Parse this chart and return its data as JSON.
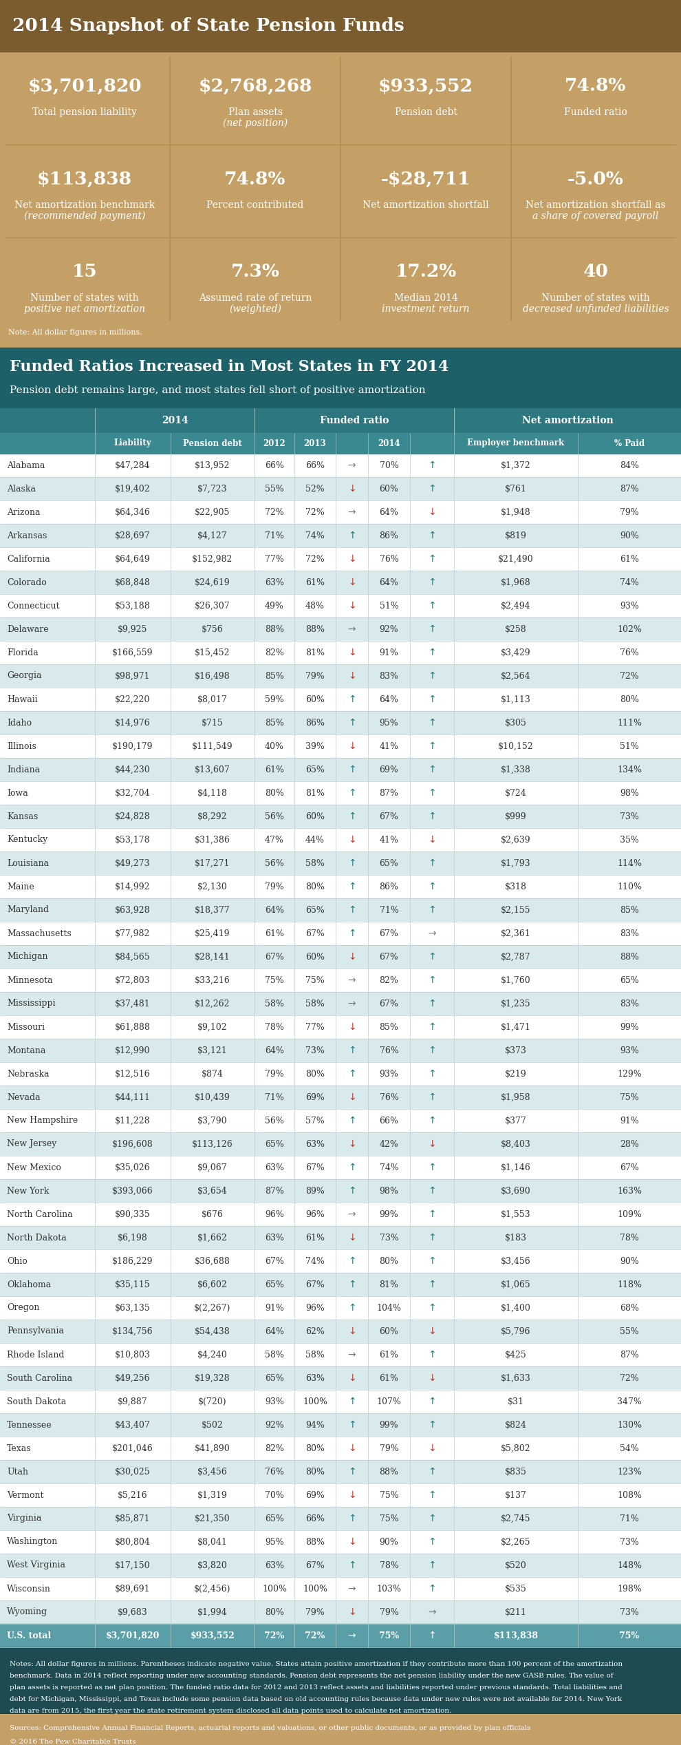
{
  "title_top": "2014 Snapshot of State Pension Funds",
  "top_dark_color": "#7a5c2e",
  "stats_bg_color": "#c4a067",
  "header_teal": "#1e6068",
  "col_header1_color": "#2d7880",
  "col_header2_color": "#3a8890",
  "row_white": "#ffffff",
  "row_light": "#d8eaec",
  "row_total_bg": "#5a9ea8",
  "notes_bg": "#1e4a52",
  "stats": [
    {
      "value": "$3,701,820",
      "label": "Total pension liability",
      "label2": ""
    },
    {
      "value": "$2,768,268",
      "label": "Plan assets",
      "label2": "(net position)"
    },
    {
      "value": "$933,552",
      "label": "Pension debt",
      "label2": ""
    },
    {
      "value": "74.8%",
      "label": "Funded ratio",
      "label2": ""
    }
  ],
  "stats2": [
    {
      "value": "$113,838",
      "label": "Net amortization benchmark",
      "label2": "(recommended payment)"
    },
    {
      "value": "74.8%",
      "label": "Percent contributed",
      "label2": ""
    },
    {
      "value": "-$28,711",
      "label": "Net amortization shortfall",
      "label2": ""
    },
    {
      "value": "-5.0%",
      "label": "Net amortization shortfall as",
      "label2": "a share of covered payroll"
    }
  ],
  "stats3": [
    {
      "value": "15",
      "label": "Number of states with",
      "label2": "positive net amortization"
    },
    {
      "value": "7.3%",
      "label": "Assumed rate of return",
      "label2": "(weighted)"
    },
    {
      "value": "17.2%",
      "label": "Median 2014",
      "label2": "investment return"
    },
    {
      "value": "40",
      "label": "Number of states with",
      "label2": "decreased unfunded liabilities"
    }
  ],
  "table_title": "Funded Ratios Increased in Most States in FY 2014",
  "table_subtitle": "Pension debt remains large, and most states fell short of positive amortization",
  "states": [
    [
      "Alabama",
      "$47,284",
      "$13,952",
      "66%",
      "66%",
      "→",
      "70%",
      "↑",
      "$1,372",
      "84%"
    ],
    [
      "Alaska",
      "$19,402",
      "$7,723",
      "55%",
      "52%",
      "↓",
      "60%",
      "↑",
      "$761",
      "87%"
    ],
    [
      "Arizona",
      "$64,346",
      "$22,905",
      "72%",
      "72%",
      "→",
      "64%",
      "↓",
      "$1,948",
      "79%"
    ],
    [
      "Arkansas",
      "$28,697",
      "$4,127",
      "71%",
      "74%",
      "↑",
      "86%",
      "↑",
      "$819",
      "90%"
    ],
    [
      "California",
      "$64,649",
      "$152,982",
      "77%",
      "72%",
      "↓",
      "76%",
      "↑",
      "$21,490",
      "61%"
    ],
    [
      "Colorado",
      "$68,848",
      "$24,619",
      "63%",
      "61%",
      "↓",
      "64%",
      "↑",
      "$1,968",
      "74%"
    ],
    [
      "Connecticut",
      "$53,188",
      "$26,307",
      "49%",
      "48%",
      "↓",
      "51%",
      "↑",
      "$2,494",
      "93%"
    ],
    [
      "Delaware",
      "$9,925",
      "$756",
      "88%",
      "88%",
      "→",
      "92%",
      "↑",
      "$258",
      "102%"
    ],
    [
      "Florida",
      "$166,559",
      "$15,452",
      "82%",
      "81%",
      "↓",
      "91%",
      "↑",
      "$3,429",
      "76%"
    ],
    [
      "Georgia",
      "$98,971",
      "$16,498",
      "85%",
      "79%",
      "↓",
      "83%",
      "↑",
      "$2,564",
      "72%"
    ],
    [
      "Hawaii",
      "$22,220",
      "$8,017",
      "59%",
      "60%",
      "↑",
      "64%",
      "↑",
      "$1,113",
      "80%"
    ],
    [
      "Idaho",
      "$14,976",
      "$715",
      "85%",
      "86%",
      "↑",
      "95%",
      "↑",
      "$305",
      "111%"
    ],
    [
      "Illinois",
      "$190,179",
      "$111,549",
      "40%",
      "39%",
      "↓",
      "41%",
      "↑",
      "$10,152",
      "51%"
    ],
    [
      "Indiana",
      "$44,230",
      "$13,607",
      "61%",
      "65%",
      "↑",
      "69%",
      "↑",
      "$1,338",
      "134%"
    ],
    [
      "Iowa",
      "$32,704",
      "$4,118",
      "80%",
      "81%",
      "↑",
      "87%",
      "↑",
      "$724",
      "98%"
    ],
    [
      "Kansas",
      "$24,828",
      "$8,292",
      "56%",
      "60%",
      "↑",
      "67%",
      "↑",
      "$999",
      "73%"
    ],
    [
      "Kentucky",
      "$53,178",
      "$31,386",
      "47%",
      "44%",
      "↓",
      "41%",
      "↓",
      "$2,639",
      "35%"
    ],
    [
      "Louisiana",
      "$49,273",
      "$17,271",
      "56%",
      "58%",
      "↑",
      "65%",
      "↑",
      "$1,793",
      "114%"
    ],
    [
      "Maine",
      "$14,992",
      "$2,130",
      "79%",
      "80%",
      "↑",
      "86%",
      "↑",
      "$318",
      "110%"
    ],
    [
      "Maryland",
      "$63,928",
      "$18,377",
      "64%",
      "65%",
      "↑",
      "71%",
      "↑",
      "$2,155",
      "85%"
    ],
    [
      "Massachusetts",
      "$77,982",
      "$25,419",
      "61%",
      "67%",
      "↑",
      "67%",
      "→",
      "$2,361",
      "83%"
    ],
    [
      "Michigan",
      "$84,565",
      "$28,141",
      "67%",
      "60%",
      "↓",
      "67%",
      "↑",
      "$2,787",
      "88%"
    ],
    [
      "Minnesota",
      "$72,803",
      "$33,216",
      "75%",
      "75%",
      "→",
      "82%",
      "↑",
      "$1,760",
      "65%"
    ],
    [
      "Mississippi",
      "$37,481",
      "$12,262",
      "58%",
      "58%",
      "→",
      "67%",
      "↑",
      "$1,235",
      "83%"
    ],
    [
      "Missouri",
      "$61,888",
      "$9,102",
      "78%",
      "77%",
      "↓",
      "85%",
      "↑",
      "$1,471",
      "99%"
    ],
    [
      "Montana",
      "$12,990",
      "$3,121",
      "64%",
      "73%",
      "↑",
      "76%",
      "↑",
      "$373",
      "93%"
    ],
    [
      "Nebraska",
      "$12,516",
      "$874",
      "79%",
      "80%",
      "↑",
      "93%",
      "↑",
      "$219",
      "129%"
    ],
    [
      "Nevada",
      "$44,111",
      "$10,439",
      "71%",
      "69%",
      "↓",
      "76%",
      "↑",
      "$1,958",
      "75%"
    ],
    [
      "New Hampshire",
      "$11,228",
      "$3,790",
      "56%",
      "57%",
      "↑",
      "66%",
      "↑",
      "$377",
      "91%"
    ],
    [
      "New Jersey",
      "$196,608",
      "$113,126",
      "65%",
      "63%",
      "↓",
      "42%",
      "↓",
      "$8,403",
      "28%"
    ],
    [
      "New Mexico",
      "$35,026",
      "$9,067",
      "63%",
      "67%",
      "↑",
      "74%",
      "↑",
      "$1,146",
      "67%"
    ],
    [
      "New York",
      "$393,066",
      "$3,654",
      "87%",
      "89%",
      "↑",
      "98%",
      "↑",
      "$3,690",
      "163%"
    ],
    [
      "North Carolina",
      "$90,335",
      "$676",
      "96%",
      "96%",
      "→",
      "99%",
      "↑",
      "$1,553",
      "109%"
    ],
    [
      "North Dakota",
      "$6,198",
      "$1,662",
      "63%",
      "61%",
      "↓",
      "73%",
      "↑",
      "$183",
      "78%"
    ],
    [
      "Ohio",
      "$186,229",
      "$36,688",
      "67%",
      "74%",
      "↑",
      "80%",
      "↑",
      "$3,456",
      "90%"
    ],
    [
      "Oklahoma",
      "$35,115",
      "$6,602",
      "65%",
      "67%",
      "↑",
      "81%",
      "↑",
      "$1,065",
      "118%"
    ],
    [
      "Oregon",
      "$63,135",
      "$(2,267)",
      "91%",
      "96%",
      "↑",
      "104%",
      "↑",
      "$1,400",
      "68%"
    ],
    [
      "Pennsylvania",
      "$134,756",
      "$54,438",
      "64%",
      "62%",
      "↓",
      "60%",
      "↓",
      "$5,796",
      "55%"
    ],
    [
      "Rhode Island",
      "$10,803",
      "$4,240",
      "58%",
      "58%",
      "→",
      "61%",
      "↑",
      "$425",
      "87%"
    ],
    [
      "South Carolina",
      "$49,256",
      "$19,328",
      "65%",
      "63%",
      "↓",
      "61%",
      "↓",
      "$1,633",
      "72%"
    ],
    [
      "South Dakota",
      "$9,887",
      "$(720)",
      "93%",
      "100%",
      "↑",
      "107%",
      "↑",
      "$31",
      "347%"
    ],
    [
      "Tennessee",
      "$43,407",
      "$502",
      "92%",
      "94%",
      "↑",
      "99%",
      "↑",
      "$824",
      "130%"
    ],
    [
      "Texas",
      "$201,046",
      "$41,890",
      "82%",
      "80%",
      "↓",
      "79%",
      "↓",
      "$5,802",
      "54%"
    ],
    [
      "Utah",
      "$30,025",
      "$3,456",
      "76%",
      "80%",
      "↑",
      "88%",
      "↑",
      "$835",
      "123%"
    ],
    [
      "Vermont",
      "$5,216",
      "$1,319",
      "70%",
      "69%",
      "↓",
      "75%",
      "↑",
      "$137",
      "108%"
    ],
    [
      "Virginia",
      "$85,871",
      "$21,350",
      "65%",
      "66%",
      "↑",
      "75%",
      "↑",
      "$2,745",
      "71%"
    ],
    [
      "Washington",
      "$80,804",
      "$8,041",
      "95%",
      "88%",
      "↓",
      "90%",
      "↑",
      "$2,265",
      "73%"
    ],
    [
      "West Virginia",
      "$17,150",
      "$3,820",
      "63%",
      "67%",
      "↑",
      "78%",
      "↑",
      "$520",
      "148%"
    ],
    [
      "Wisconsin",
      "$89,691",
      "$(2,456)",
      "100%",
      "100%",
      "→",
      "103%",
      "↑",
      "$535",
      "198%"
    ],
    [
      "Wyoming",
      "$9,683",
      "$1,994",
      "80%",
      "79%",
      "↓",
      "79%",
      "→",
      "$211",
      "73%"
    ],
    [
      "U.S. total",
      "$3,701,820",
      "$933,552",
      "72%",
      "72%",
      "→",
      "75%",
      "↑",
      "$113,838",
      "75%"
    ]
  ],
  "notes_text": "Notes: All dollar figures in millions. Parentheses indicate negative value. States attain positive amortization if they contribute more than 100 percent of the amortization\nbenchmark. Data in 2014 reflect reporting under new accounting standards. Pension debt represents the net pension liability under the new GASB rules. The value of\nplan assets is reported as net plan position. The funded ratio data for 2012 and 2013 reflect assets and liabilities reported under previous standards. Total liabilities and\ndebt for Michigan, Mississippi, and Texas include some pension data based on old accounting rules because data under new rules were not available for 2014. New York\ndata are from 2015, the first year the state retirement system disclosed all data points used to calculate net amortization.",
  "source_text": "Sources: Comprehensive Annual Financial Reports, actuarial reports and valuations, or other public documents, or as provided by plan officials",
  "copyright_text": "© 2016 The Pew Charitable Trusts"
}
